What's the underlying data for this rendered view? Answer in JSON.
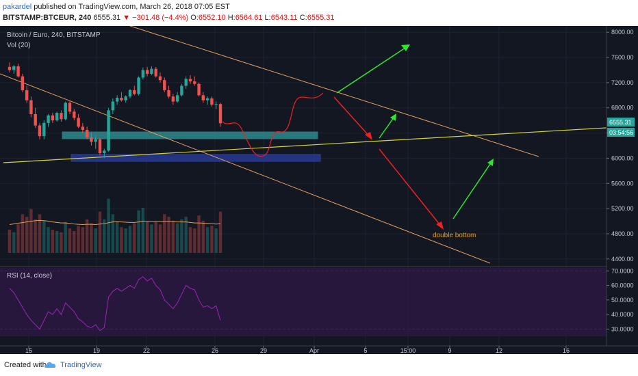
{
  "header": {
    "author": "pakardel",
    "published_text": " published on TradingView.com, March 26, 2018 07:05 EST",
    "symbol": "BITSTAMP:BTCEUR, 240",
    "last": "6555.31",
    "change_arrow": "▼",
    "change": "−301.48 (−4.4%)",
    "o_label": "O:",
    "o_value": "6552.10",
    "h_label": "H:",
    "h_value": "6564.61",
    "l_label": "L:",
    "l_value": "6543.11",
    "c_label": "C:",
    "c_value": "6555.31"
  },
  "footer": {
    "created_with": "Created with",
    "brand": "TradingView"
  },
  "colors": {
    "background": "#131722",
    "up": "#26a69a",
    "down": "#ef5350",
    "trend_channel": "#e0a060",
    "support_line": "#d4d43a",
    "cyan_zone": "#3ec6c6",
    "blue_zone": "#2b3fa8",
    "rsi_line": "#9c27b0",
    "arrow_up": "#2ee62e",
    "arrow_down": "#ee2222",
    "annotation": "#e8a020"
  },
  "chart_data": [
    {
      "type": "candlestick",
      "title": "Bitcoin / Euro, 240, BITSTAMP",
      "indicator_label": "Vol (20)",
      "ylim": [
        4300,
        8100
      ],
      "y_ticks": [
        "8000.00",
        "7600.00",
        "7200.00",
        "6800.00",
        "6400.00",
        "6000.00",
        "5600.00",
        "5200.00",
        "4800.00",
        "4400.00"
      ],
      "x_ticks": [
        "15",
        "19",
        "22",
        "26",
        "29",
        "Apr",
        "5",
        "15:00",
        "9",
        "12",
        "16"
      ],
      "last_price_label": "6555.31",
      "countdown_label": "03:54:56",
      "annotation": "double bottom",
      "candles": [
        {
          "o": 7450,
          "h": 7520,
          "l": 7360,
          "c": 7400
        },
        {
          "o": 7400,
          "h": 7480,
          "l": 7340,
          "c": 7460
        },
        {
          "o": 7460,
          "h": 7500,
          "l": 7280,
          "c": 7300
        },
        {
          "o": 7300,
          "h": 7340,
          "l": 7050,
          "c": 7080
        },
        {
          "o": 7080,
          "h": 7150,
          "l": 6880,
          "c": 6920
        },
        {
          "o": 6920,
          "h": 6980,
          "l": 6650,
          "c": 6700
        },
        {
          "o": 6700,
          "h": 6800,
          "l": 6480,
          "c": 6520
        },
        {
          "o": 6520,
          "h": 6560,
          "l": 6300,
          "c": 6350
        },
        {
          "o": 6350,
          "h": 6600,
          "l": 6300,
          "c": 6560
        },
        {
          "o": 6560,
          "h": 6700,
          "l": 6500,
          "c": 6680
        },
        {
          "o": 6680,
          "h": 6720,
          "l": 6560,
          "c": 6600
        },
        {
          "o": 6600,
          "h": 6740,
          "l": 6580,
          "c": 6720
        },
        {
          "o": 6720,
          "h": 6760,
          "l": 6580,
          "c": 6620
        },
        {
          "o": 6620,
          "h": 6900,
          "l": 6600,
          "c": 6880
        },
        {
          "o": 6880,
          "h": 6920,
          "l": 6700,
          "c": 6740
        },
        {
          "o": 6740,
          "h": 6780,
          "l": 6600,
          "c": 6640
        },
        {
          "o": 6640,
          "h": 6700,
          "l": 6480,
          "c": 6500
        },
        {
          "o": 6500,
          "h": 6560,
          "l": 6400,
          "c": 6450
        },
        {
          "o": 6450,
          "h": 6500,
          "l": 6300,
          "c": 6330
        },
        {
          "o": 6330,
          "h": 6400,
          "l": 6200,
          "c": 6260
        },
        {
          "o": 6260,
          "h": 6350,
          "l": 6150,
          "c": 6300
        },
        {
          "o": 6300,
          "h": 6320,
          "l": 6050,
          "c": 6080
        },
        {
          "o": 6080,
          "h": 6150,
          "l": 6000,
          "c": 6120
        },
        {
          "o": 6120,
          "h": 6800,
          "l": 6100,
          "c": 6760
        },
        {
          "o": 6760,
          "h": 6950,
          "l": 6700,
          "c": 6900
        },
        {
          "o": 6900,
          "h": 7000,
          "l": 6850,
          "c": 6960
        },
        {
          "o": 6960,
          "h": 7050,
          "l": 6900,
          "c": 6920
        },
        {
          "o": 6920,
          "h": 7000,
          "l": 6880,
          "c": 6980
        },
        {
          "o": 6980,
          "h": 7100,
          "l": 6950,
          "c": 7080
        },
        {
          "o": 7080,
          "h": 7150,
          "l": 7000,
          "c": 7020
        },
        {
          "o": 7020,
          "h": 7300,
          "l": 7000,
          "c": 7280
        },
        {
          "o": 7280,
          "h": 7440,
          "l": 7250,
          "c": 7400
        },
        {
          "o": 7400,
          "h": 7450,
          "l": 7300,
          "c": 7340
        },
        {
          "o": 7340,
          "h": 7460,
          "l": 7320,
          "c": 7420
        },
        {
          "o": 7420,
          "h": 7450,
          "l": 7280,
          "c": 7300
        },
        {
          "o": 7300,
          "h": 7360,
          "l": 7200,
          "c": 7240
        },
        {
          "o": 7240,
          "h": 7280,
          "l": 7050,
          "c": 7080
        },
        {
          "o": 7080,
          "h": 7150,
          "l": 6950,
          "c": 6980
        },
        {
          "o": 6980,
          "h": 7020,
          "l": 6850,
          "c": 6900
        },
        {
          "o": 6900,
          "h": 7050,
          "l": 6880,
          "c": 7000
        },
        {
          "o": 7000,
          "h": 7180,
          "l": 6980,
          "c": 7150
        },
        {
          "o": 7150,
          "h": 7300,
          "l": 7100,
          "c": 7260
        },
        {
          "o": 7260,
          "h": 7320,
          "l": 7180,
          "c": 7220
        },
        {
          "o": 7220,
          "h": 7300,
          "l": 7150,
          "c": 7180
        },
        {
          "o": 7180,
          "h": 7200,
          "l": 6980,
          "c": 7000
        },
        {
          "o": 7000,
          "h": 7050,
          "l": 6880,
          "c": 6920
        },
        {
          "o": 6920,
          "h": 6980,
          "l": 6850,
          "c": 6950
        },
        {
          "o": 6950,
          "h": 6980,
          "l": 6820,
          "c": 6850
        },
        {
          "o": 6850,
          "h": 6900,
          "l": 6780,
          "c": 6860
        },
        {
          "o": 6860,
          "h": 6880,
          "l": 6500,
          "c": 6555
        }
      ],
      "volumes": [
        180,
        160,
        220,
        300,
        280,
        340,
        260,
        300,
        250,
        200,
        180,
        170,
        160,
        240,
        190,
        170,
        210,
        200,
        260,
        230,
        190,
        320,
        260,
        420,
        300,
        240,
        200,
        190,
        210,
        230,
        330,
        350,
        240,
        220,
        240,
        220,
        300,
        280,
        250,
        230,
        260,
        280,
        200,
        190,
        290,
        250,
        200,
        210,
        190,
        320
      ],
      "volume_ma": [
        220,
        225,
        230,
        235,
        240,
        245,
        250,
        252,
        250,
        246,
        240,
        236,
        232,
        232,
        228,
        224,
        222,
        220,
        222,
        222,
        220,
        224,
        226,
        234,
        240,
        242,
        240,
        238,
        236,
        236,
        240,
        246,
        246,
        244,
        244,
        242,
        244,
        244,
        242,
        240,
        240,
        240,
        236,
        232,
        232,
        230,
        228,
        226,
        224,
        226
      ]
    },
    {
      "type": "line",
      "title": "RSI (14, close)",
      "ylim": [
        25,
        72
      ],
      "y_ticks": [
        "70.0000",
        "60.0000",
        "50.0000",
        "40.0000",
        "30.0000"
      ],
      "levels": [
        70,
        30
      ],
      "values": [
        58,
        55,
        50,
        45,
        40,
        36,
        33,
        30,
        36,
        42,
        40,
        44,
        40,
        48,
        45,
        42,
        37,
        35,
        32,
        31,
        33,
        29,
        31,
        52,
        56,
        58,
        56,
        58,
        60,
        58,
        64,
        66,
        63,
        65,
        60,
        57,
        50,
        47,
        44,
        48,
        54,
        60,
        58,
        57,
        50,
        45,
        46,
        44,
        46,
        36
      ]
    }
  ]
}
